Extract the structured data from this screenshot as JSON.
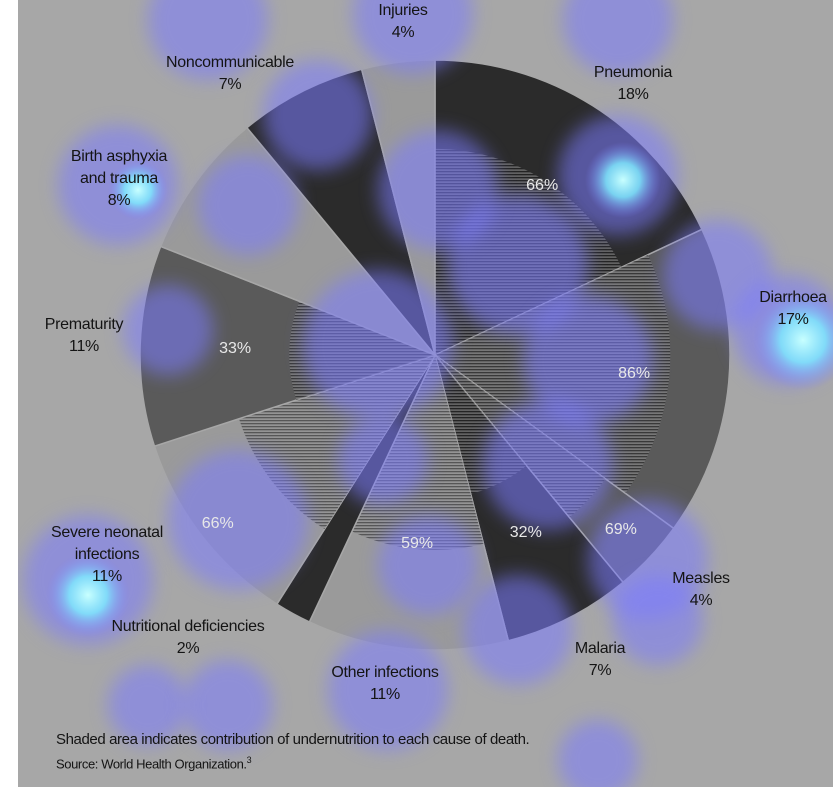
{
  "chart_data": {
    "type": "pie",
    "slices": [
      {
        "name": "Pneumonia",
        "percent": 18,
        "undernutrition_share": 66,
        "name_lines": [
          "Pneumonia"
        ]
      },
      {
        "name": "Diarrhoea",
        "percent": 17,
        "undernutrition_share": 86,
        "name_lines": [
          "Diarrhoea"
        ]
      },
      {
        "name": "Measles",
        "percent": 4,
        "undernutrition_share": 69,
        "name_lines": [
          "Measles"
        ]
      },
      {
        "name": "Malaria",
        "percent": 7,
        "undernutrition_share": 32,
        "name_lines": [
          "Malaria"
        ]
      },
      {
        "name": "Other infections",
        "percent": 11,
        "undernutrition_share": 59,
        "name_lines": [
          "Other infections"
        ]
      },
      {
        "name": "Nutritional deficiencies",
        "percent": 2,
        "undernutrition_share": null,
        "name_lines": [
          "Nutritional deficiencies"
        ]
      },
      {
        "name": "Severe neonatal infections",
        "percent": 11,
        "undernutrition_share": 66,
        "name_lines": [
          "Severe neonatal",
          "infections"
        ]
      },
      {
        "name": "Prematurity",
        "percent": 11,
        "undernutrition_share": 33,
        "name_lines": [
          "Prematurity"
        ]
      },
      {
        "name": "Birth asphyxia and trauma",
        "percent": 8,
        "undernutrition_share": null,
        "name_lines": [
          "Birth asphyxia",
          "and trauma"
        ]
      },
      {
        "name": "Noncommunicable",
        "percent": 7,
        "undernutrition_share": null,
        "name_lines": [
          "Noncommunicable"
        ]
      },
      {
        "name": "Injuries",
        "percent": 4,
        "undernutrition_share": null,
        "name_lines": [
          "Injuries"
        ]
      }
    ],
    "note": "Shaded area indicates contribution of undernutrition to each cause of death.",
    "source": "Source: World Health Organization.",
    "source_ref": "3",
    "percent_suffix": "%"
  },
  "colors": {
    "background": "#a7a7a7",
    "slice_dark": "#2b2b2b",
    "slice_mid": "#5a5a5a",
    "slice_light": "#9a9a9a",
    "heatmap_overlay": "#7b7bff",
    "heatmap_hot": "#9ff7ff"
  }
}
